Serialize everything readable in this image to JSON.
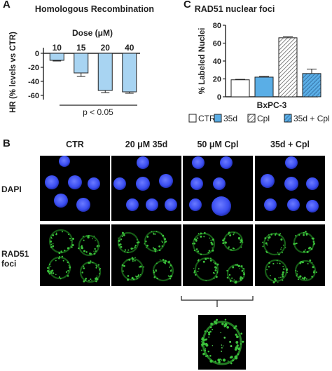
{
  "panels": {
    "a": {
      "letter": "A"
    },
    "b": {
      "letter": "B"
    },
    "c": {
      "letter": "C"
    }
  },
  "chart_data": [
    {
      "type": "bar",
      "title": "Homologous Recombination",
      "legend_title": "Dose (μM)",
      "ylabel": "HR (% levels vs CTR)",
      "categories": [
        "10",
        "15",
        "20",
        "40"
      ],
      "values": [
        -10,
        -28,
        -53,
        -55
      ],
      "errors": [
        1,
        5,
        3,
        2
      ],
      "ylim": [
        -62,
        2
      ],
      "yticks": [
        0,
        -20,
        -40,
        -60
      ],
      "annotation": "p < 0.05",
      "bar_color": "#a8d4f2",
      "grid": false
    },
    {
      "type": "bar",
      "title": "RAD51 nuclear foci",
      "ylabel": "% Labeled Nuclei",
      "xlabel": "BxPC-3",
      "categories": [
        "CTR",
        "35d",
        "Cpl",
        "35d + Cpl"
      ],
      "values": [
        19,
        22,
        66,
        26
      ],
      "errors": [
        0.5,
        0.8,
        1,
        5
      ],
      "ylim": [
        0,
        80
      ],
      "yticks": [
        0,
        20,
        40,
        60,
        80
      ],
      "legend": [
        "CTR",
        "35d",
        "Cpl",
        "35d + Cpl"
      ],
      "legend_position": "bottom",
      "colors": {
        "CTR": "#ffffff",
        "35d": "#5aaee6",
        "Cpl": "#ffffff",
        "35d + Cpl": "#5aaee6"
      },
      "grid": false
    }
  ],
  "micrographs": {
    "columns": [
      "CTR",
      "20 μM 35d",
      "50 μM Cpl",
      "35d + Cpl"
    ],
    "rows": [
      "DAPI",
      "RAD51\nfoci"
    ],
    "dapi_color": "#3a4df0",
    "foci_color": "#3cc23c"
  }
}
